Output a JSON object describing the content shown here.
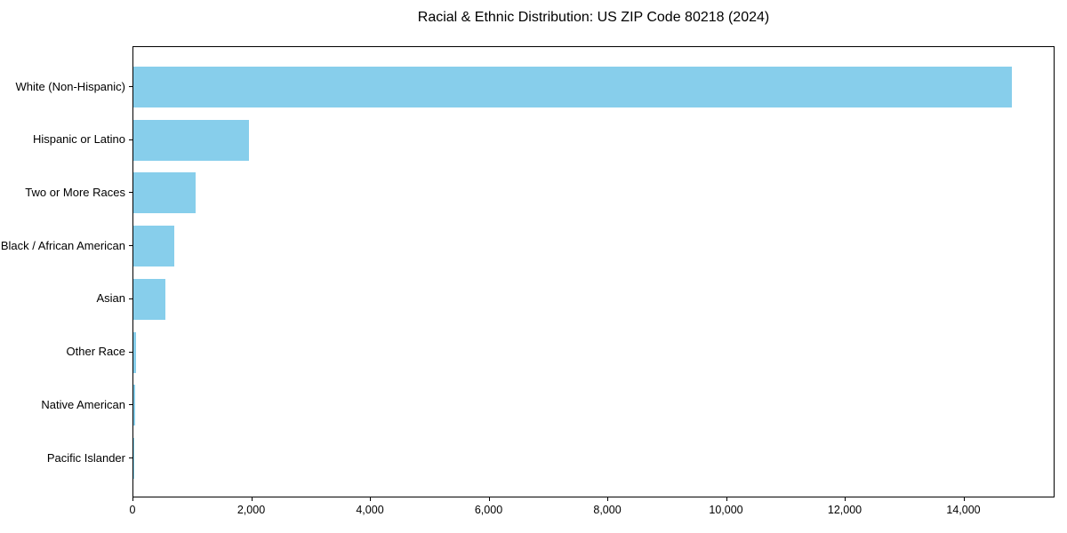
{
  "chart_data": {
    "type": "bar",
    "orientation": "horizontal",
    "title": "Racial & Ethnic Distribution: US ZIP Code 80218 (2024)",
    "categories": [
      "White (Non-Hispanic)",
      "Hispanic or Latino",
      "Two or More Races",
      "Black / African American",
      "Asian",
      "Other Race",
      "Native American",
      "Pacific Islander"
    ],
    "values": [
      14800,
      1950,
      1050,
      685,
      535,
      40,
      35,
      5
    ],
    "xlabel": "",
    "ylabel": "",
    "xlim": [
      0,
      15535
    ],
    "xticks": [
      0,
      2000,
      4000,
      6000,
      8000,
      10000,
      12000,
      14000
    ],
    "xtick_labels": [
      "0",
      "2,000",
      "4,000",
      "6,000",
      "8,000",
      "10,000",
      "12,000",
      "14,000"
    ],
    "bar_color": "#87CEEB",
    "axis_color": "#000000",
    "text_color": "#000000",
    "background": "#FFFFFF",
    "grid": false,
    "legend": "none"
  }
}
